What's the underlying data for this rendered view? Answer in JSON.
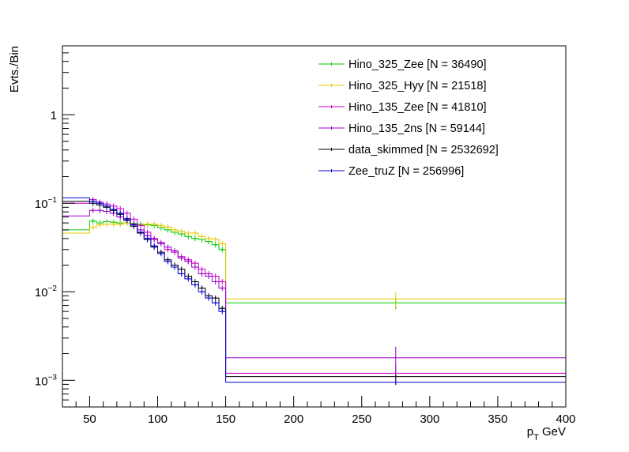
{
  "chart_data": {
    "type": "line",
    "style": "step-histogram",
    "title": "",
    "xlabel": "p_T GeV",
    "xlabel_main": "p",
    "xlabel_sub": "T",
    "xlabel_unit": "GeV",
    "ylabel": "Evts./Bin",
    "xlim": [
      30,
      400
    ],
    "ylim": [
      0.0005,
      6
    ],
    "yscale": "log",
    "x_ticks": [
      50,
      100,
      150,
      200,
      250,
      300,
      350,
      400
    ],
    "x_tick_labels": [
      "50",
      "100",
      "150",
      "200",
      "250",
      "300",
      "350",
      "400"
    ],
    "y_ticks": [
      {
        "value": 0.001,
        "base": "10",
        "exp": "−3"
      },
      {
        "value": 0.01,
        "base": "10",
        "exp": "−2"
      },
      {
        "value": 0.1,
        "base": "10",
        "exp": "−1"
      },
      {
        "value": 1,
        "base": "1",
        "exp": ""
      }
    ],
    "legend_position": "top-right",
    "bin_edges": [
      30,
      35,
      40,
      45,
      50,
      55,
      60,
      65,
      70,
      75,
      80,
      85,
      90,
      95,
      100,
      105,
      110,
      115,
      120,
      125,
      130,
      135,
      140,
      145,
      150,
      400
    ],
    "error_bar_x": 275,
    "series": [
      {
        "name": "Hino_325_Zee [N = 36490]",
        "color": "#00cc00",
        "values": [
          0.05,
          0.05,
          0.05,
          0.05,
          0.063,
          0.06,
          0.062,
          0.061,
          0.06,
          0.06,
          0.059,
          0.058,
          0.057,
          0.056,
          0.053,
          0.05,
          0.047,
          0.045,
          0.042,
          0.04,
          0.039,
          0.037,
          0.034,
          0.03,
          0.0075
        ],
        "errors": [
          0,
          0,
          0,
          0,
          0,
          0,
          0,
          0,
          0,
          0,
          0,
          0,
          0,
          0,
          0,
          0,
          0,
          0,
          0,
          0,
          0,
          0,
          0,
          0,
          0.0011
        ]
      },
      {
        "name": "Hino_325_Hyy [N = 21518]",
        "color": "#e6c800",
        "values": [
          0.046,
          0.046,
          0.046,
          0.046,
          0.053,
          0.057,
          0.058,
          0.058,
          0.058,
          0.06,
          0.058,
          0.057,
          0.058,
          0.058,
          0.056,
          0.054,
          0.05,
          0.048,
          0.046,
          0.046,
          0.042,
          0.04,
          0.039,
          0.035,
          0.0083
        ],
        "errors": [
          0,
          0,
          0,
          0,
          0,
          0,
          0,
          0,
          0,
          0,
          0,
          0,
          0,
          0,
          0,
          0,
          0,
          0,
          0,
          0,
          0,
          0,
          0,
          0,
          0.0016
        ]
      },
      {
        "name": "Hino_135_Zee [N = 41810]",
        "color": "#cc00cc",
        "values": [
          0.1,
          0.1,
          0.1,
          0.1,
          0.11,
          0.103,
          0.098,
          0.093,
          0.087,
          0.077,
          0.066,
          0.056,
          0.047,
          0.04,
          0.036,
          0.03,
          0.028,
          0.025,
          0.023,
          0.021,
          0.018,
          0.016,
          0.015,
          0.013,
          0.0012
        ],
        "errors": [
          0,
          0,
          0,
          0,
          0,
          0,
          0,
          0,
          0,
          0,
          0,
          0,
          0,
          0,
          0,
          0,
          0,
          0,
          0,
          0,
          0,
          0,
          0,
          0,
          0.0003
        ]
      },
      {
        "name": "Hino_135_2ns [N = 59144]",
        "color": "#9900cc",
        "values": [
          0.072,
          0.072,
          0.072,
          0.072,
          0.083,
          0.083,
          0.081,
          0.077,
          0.07,
          0.064,
          0.058,
          0.05,
          0.043,
          0.039,
          0.035,
          0.032,
          0.029,
          0.024,
          0.022,
          0.019,
          0.016,
          0.015,
          0.013,
          0.011,
          0.0018
        ],
        "errors": [
          0,
          0,
          0,
          0,
          0,
          0,
          0,
          0,
          0,
          0,
          0,
          0,
          0,
          0,
          0,
          0,
          0,
          0,
          0,
          0,
          0,
          0,
          0,
          0,
          0.0006
        ]
      },
      {
        "name": "data_skimmed [N = 2532692]",
        "color": "#000000",
        "values": [
          0.105,
          0.105,
          0.105,
          0.105,
          0.1,
          0.096,
          0.09,
          0.083,
          0.075,
          0.065,
          0.055,
          0.046,
          0.039,
          0.032,
          0.028,
          0.023,
          0.02,
          0.018,
          0.015,
          0.013,
          0.011,
          0.009,
          0.0085,
          0.0065,
          0.0011
        ],
        "errors": [
          0,
          0,
          0,
          0,
          0,
          0,
          0,
          0,
          0,
          0,
          0,
          0,
          0,
          0,
          0,
          0,
          0,
          0,
          0,
          0,
          0,
          0,
          0,
          0,
          0
        ]
      },
      {
        "name": "Zee_truZ [N = 256996]",
        "color": "#0000cc",
        "values": [
          0.115,
          0.115,
          0.115,
          0.115,
          0.105,
          0.1,
          0.093,
          0.085,
          0.077,
          0.067,
          0.057,
          0.047,
          0.04,
          0.033,
          0.027,
          0.022,
          0.019,
          0.016,
          0.014,
          0.012,
          0.01,
          0.0085,
          0.0075,
          0.006,
          0.00095
        ],
        "errors": [
          0,
          0,
          0,
          0,
          0,
          0,
          0,
          0,
          0,
          0,
          0,
          0,
          0,
          0,
          0,
          0,
          0,
          0,
          0,
          0,
          0,
          0,
          0,
          0,
          0
        ]
      }
    ]
  }
}
